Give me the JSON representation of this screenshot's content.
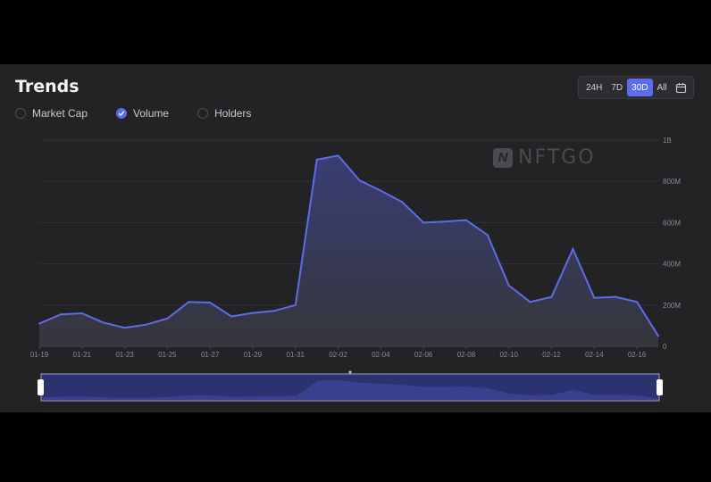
{
  "header": {
    "title": "Trends"
  },
  "legend": {
    "items": [
      {
        "label": "Market Cap",
        "checked": false
      },
      {
        "label": "Volume",
        "checked": true
      },
      {
        "label": "Holders",
        "checked": false
      }
    ]
  },
  "range": {
    "options": [
      "24H",
      "7D",
      "30D",
      "All"
    ],
    "active": "30D",
    "calendar_icon": "calendar-icon"
  },
  "watermark": {
    "text": "NFTGO"
  },
  "colors": {
    "accent": "#5b6cf0",
    "line": "#5d6ce8",
    "panel": "#232326"
  },
  "chart_data": {
    "type": "area",
    "x": [
      "01-19",
      "01-20",
      "01-21",
      "01-22",
      "01-23",
      "01-24",
      "01-25",
      "01-26",
      "01-27",
      "01-28",
      "01-29",
      "01-30",
      "01-31",
      "02-01",
      "02-02",
      "02-03",
      "02-04",
      "02-05",
      "02-06",
      "02-07",
      "02-08",
      "02-09",
      "02-10",
      "02-11",
      "02-12",
      "02-13",
      "02-14",
      "02-15",
      "02-16",
      "02-17"
    ],
    "series": [
      {
        "values": [
          110,
          155,
          160,
          115,
          90,
          105,
          135,
          215,
          212,
          145,
          162,
          172,
          200,
          905,
          925,
          805,
          755,
          700,
          600,
          605,
          612,
          540,
          295,
          215,
          240,
          472,
          235,
          240,
          215,
          50
        ]
      }
    ],
    "x_tick_labels": [
      "01-19",
      "01-21",
      "01-23",
      "01-25",
      "01-27",
      "01-29",
      "01-31",
      "02-02",
      "02-04",
      "02-06",
      "02-08",
      "02-10",
      "02-12",
      "02-14",
      "02-16"
    ],
    "y_tick_labels": [
      "0",
      "200M",
      "400M",
      "600M",
      "800M",
      "1B"
    ],
    "ylim": [
      0,
      1000
    ],
    "grid": true,
    "y_axis_position": "right"
  }
}
